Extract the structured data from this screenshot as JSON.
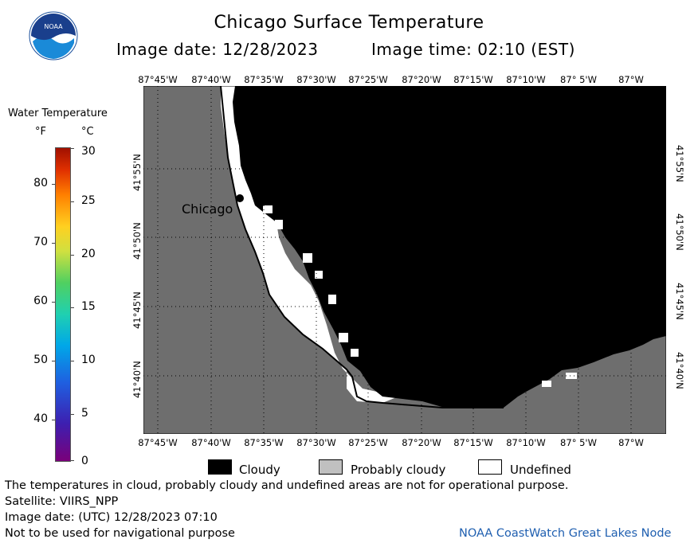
{
  "header": {
    "title": "Chicago Surface Temperature",
    "date_text": "Image date: 12/28/2023",
    "time_text": "Image time: 02:10 (EST)",
    "logo_text": "NOAA"
  },
  "map": {
    "lon_labels": [
      "87°45'W",
      "87°40'W",
      "87°35'W",
      "87°30'W",
      "87°25'W",
      "87°20'W",
      "87°15'W",
      "87°10'W",
      "87° 5'W",
      "87°W"
    ],
    "lat_labels": [
      "41°55'N",
      "41°50'N",
      "41°45'N",
      "41°40'N"
    ],
    "city_label": "Chicago",
    "colors": {
      "land": "#6e6e6e",
      "cloudy": "#000000",
      "undefined": "#ffffff",
      "grid": "#000000"
    }
  },
  "colorbar": {
    "title": "Water Temperature",
    "unit_f": "°F",
    "unit_c": "°C",
    "ticks_f": [
      "80",
      "70",
      "60",
      "50",
      "40"
    ],
    "ticks_c": [
      "30",
      "25",
      "20",
      "15",
      "10",
      "5",
      "0"
    ]
  },
  "legend": {
    "cloudy": "Cloudy",
    "probably_cloudy": "Probably cloudy",
    "undefined": "Undefined",
    "colors": {
      "cloudy": "#000000",
      "probably_cloudy": "#c0c0c0",
      "undefined": "#ffffff"
    }
  },
  "footer": {
    "note": "The temperatures in cloud, probably cloudy and undefined areas are not for operational purpose.",
    "satellite": "Satellite: VIIRS_NPP",
    "utc_date": "Image date: (UTC) 12/28/2023  07:10",
    "nav_warning": "Not to be used for navigational purpose",
    "credit": "NOAA CoastWatch Great Lakes Node"
  }
}
